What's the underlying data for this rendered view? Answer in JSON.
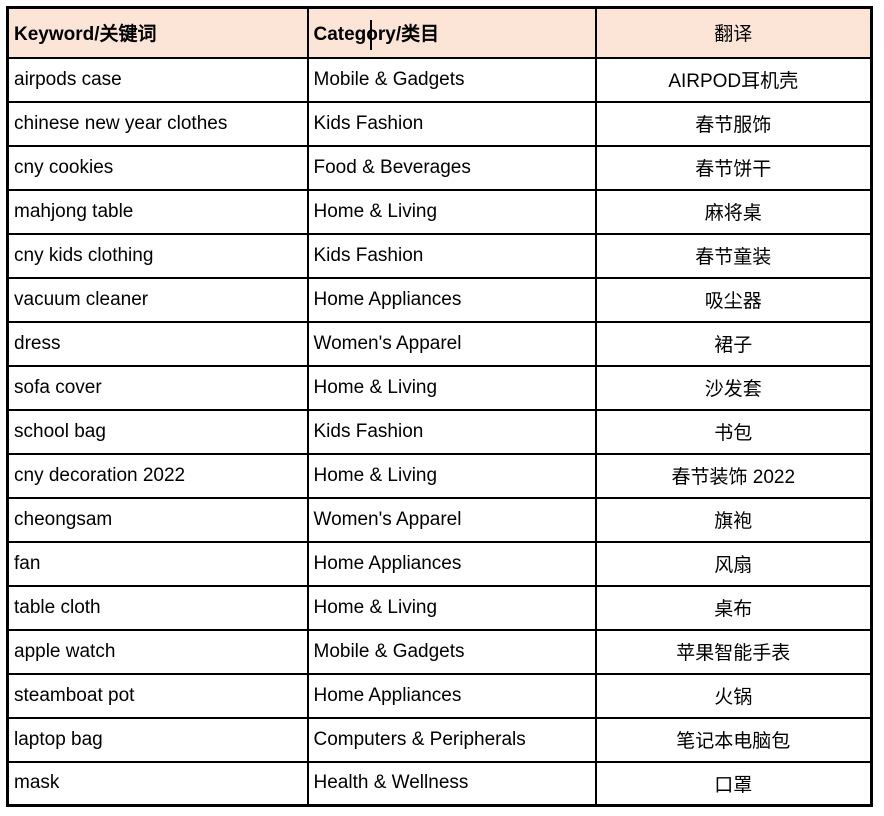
{
  "colors": {
    "header_bg": "#FCE4D6",
    "border": "#000000",
    "text": "#000000"
  },
  "table": {
    "headers": {
      "keyword": "Keyword/关键词",
      "category": "Category/类目",
      "translation": "翻译"
    },
    "rows": [
      {
        "keyword": "airpods case",
        "category": "Mobile & Gadgets",
        "translation": "AIRPOD耳机壳"
      },
      {
        "keyword": "chinese new year clothes",
        "category": "Kids Fashion",
        "translation": "春节服饰"
      },
      {
        "keyword": "cny cookies",
        "category": "Food & Beverages",
        "translation": "春节饼干"
      },
      {
        "keyword": "mahjong table",
        "category": "Home & Living",
        "translation": "麻将桌"
      },
      {
        "keyword": "cny kids clothing",
        "category": "Kids Fashion",
        "translation": "春节童装"
      },
      {
        "keyword": "vacuum cleaner",
        "category": "Home Appliances",
        "translation": "吸尘器"
      },
      {
        "keyword": "dress",
        "category": "Women's Apparel",
        "translation": "裙子"
      },
      {
        "keyword": "sofa cover",
        "category": "Home & Living",
        "translation": "沙发套"
      },
      {
        "keyword": "school bag",
        "category": "Kids Fashion",
        "translation": "书包"
      },
      {
        "keyword": "cny decoration 2022",
        "category": "Home & Living",
        "translation": "春节装饰 2022"
      },
      {
        "keyword": "cheongsam",
        "category": "Women's Apparel",
        "translation": "旗袍"
      },
      {
        "keyword": "fan",
        "category": "Home Appliances",
        "translation": "风扇"
      },
      {
        "keyword": "table cloth",
        "category": "Home & Living",
        "translation": "桌布"
      },
      {
        "keyword": "apple watch",
        "category": "Mobile & Gadgets",
        "translation": "苹果智能手表"
      },
      {
        "keyword": "steamboat pot",
        "category": "Home Appliances",
        "translation": "火锅"
      },
      {
        "keyword": "laptop bag",
        "category": "Computers & Peripherals",
        "translation": "笔记本电脑包"
      },
      {
        "keyword": "mask",
        "category": "Health & Wellness",
        "translation": "口罩"
      }
    ]
  }
}
